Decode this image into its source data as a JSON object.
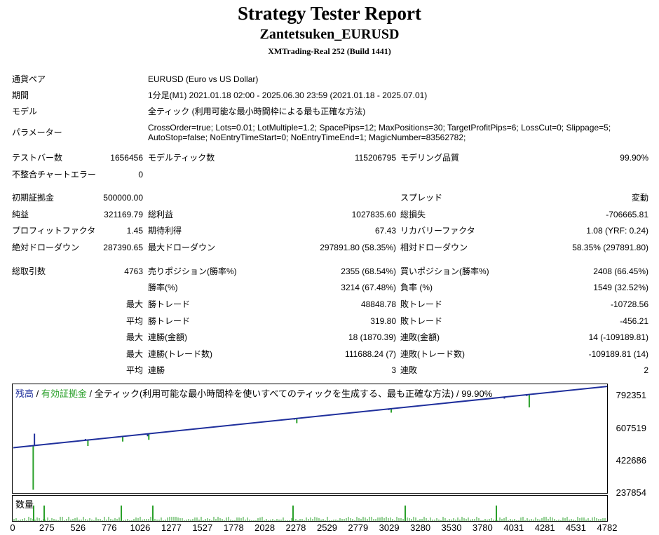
{
  "report": {
    "title": "Strategy Tester Report",
    "expert": "Zantetsuken_EURUSD",
    "server": "XMTrading-Real 252 (Build 1441)"
  },
  "info": {
    "pair_label": "通貨ペア",
    "pair_value": "EURUSD (Euro vs US Dollar)",
    "period_label": "期間",
    "period_value": "1分足(M1) 2021.01.18 02:00 - 2025.06.30 23:59 (2021.01.18 - 2025.07.01)",
    "model_label": "モデル",
    "model_value": "全ティック (利用可能な最小時間枠による最も正確な方法)",
    "params_label": "パラメーター",
    "params_line1": "CrossOrder=true; Lots=0.01; LotMultiple=1.2; SpacePips=12; MaxPositions=30; TargetProfitPips=6; LossCut=0; Slippage=5;",
    "params_line2": "AutoStop=false; NoEntryTimeStart=0; NoEntryTimeEnd=1; MagicNumber=83562782;"
  },
  "stats": {
    "bars_label": "テストバー数",
    "bars_value": "1656456",
    "ticks_label": "モデルティック数",
    "ticks_value": "115206795",
    "quality_label": "モデリング品質",
    "quality_value": "99.90%",
    "mismatch_label": "不整合チャートエラー",
    "mismatch_value": "0",
    "deposit_label": "初期証拠金",
    "deposit_value": "500000.00",
    "spread_label": "スプレッド",
    "spread_value": "変動",
    "net_label": "純益",
    "net_value": "321169.79",
    "gross_profit_label": "総利益",
    "gross_profit_value": "1027835.60",
    "gross_loss_label": "総損失",
    "gross_loss_value": "-706665.81",
    "pf_label": "プロフィットファクタ",
    "pf_value": "1.45",
    "expected_label": "期待利得",
    "expected_value": "67.43",
    "recovery_label": "リカバリーファクタ",
    "recovery_value": "1.08 (YRF: 0.24)",
    "abs_dd_label": "絶対ドローダウン",
    "abs_dd_value": "287390.65",
    "max_dd_label": "最大ドローダウン",
    "max_dd_value": "297891.80 (58.35%)",
    "rel_dd_label": "相対ドローダウン",
    "rel_dd_value": "58.35% (297891.80)",
    "trades_label": "総取引数",
    "trades_value": "4763",
    "short_label": "売りポジション(勝率%)",
    "short_value": "2355 (68.54%)",
    "long_label": "買いポジション(勝率%)",
    "long_value": "2408 (66.45%)",
    "winrate_label": "勝率(%)",
    "winrate_value": "3214 (67.48%)",
    "lossrate_label": "負率 (%)",
    "lossrate_value": "1549 (32.52%)",
    "max1": "最大",
    "largest_win_label": "勝トレード",
    "largest_win_value": "48848.78",
    "largest_loss_label": "敗トレード",
    "largest_loss_value": "-10728.56",
    "avg1": "平均",
    "avg_win_label": "勝トレード",
    "avg_win_value": "319.80",
    "avg_loss_label": "敗トレード",
    "avg_loss_value": "-456.21",
    "max2": "最大",
    "cons_win_label": "連勝(金額)",
    "cons_win_value": "18 (1870.39)",
    "cons_loss_label": "連敗(金額)",
    "cons_loss_value": "14 (-109189.81)",
    "max3": "最大",
    "cons_profit_label": "連勝(トレード数)",
    "cons_profit_value": "111688.24 (7)",
    "cons_lossamt_label": "連敗(トレード数)",
    "cons_lossamt_value": "-109189.81 (14)",
    "avg2": "平均",
    "avg_cons_win_label": "連勝",
    "avg_cons_win_value": "3",
    "avg_cons_loss_label": "連敗",
    "avg_cons_loss_value": "2"
  },
  "chart": {
    "legend_balance": "残高",
    "legend_sep1": " / ",
    "legend_equity": "有効証拠金",
    "legend_sep2": " / ",
    "legend_model": "全ティック(利用可能な最小時間枠を使いすべてのティックを生成する、最も正確な方法) / 99.90%",
    "volume_label": "数量",
    "colors": {
      "balance": "#1f2f9c",
      "equity": "#2aa02a",
      "volume": "#2aa02a"
    }
  },
  "chart_data": {
    "type": "line",
    "ylim": [
      237854,
      850000
    ],
    "y_ticks": [
      "792351",
      "607519",
      "422686",
      "237854"
    ],
    "x_ticks": [
      "0",
      "275",
      "526",
      "776",
      "1026",
      "1277",
      "1527",
      "1778",
      "2028",
      "2278",
      "2529",
      "2779",
      "3029",
      "3280",
      "3530",
      "3780",
      "4031",
      "4281",
      "4531",
      "4782"
    ],
    "xlim": [
      0,
      4782
    ],
    "series": [
      {
        "name": "残高",
        "x": [
          0,
          4782
        ],
        "y": [
          500000,
          850000
        ]
      }
    ],
    "balance_spikes": [
      {
        "x": 170,
        "y": 580000
      },
      {
        "x": 580,
        "y": 550000
      },
      {
        "x": 870,
        "y": 560000
      },
      {
        "x": 1080,
        "y": 565000
      },
      {
        "x": 2260,
        "y": 660000
      },
      {
        "x": 3020,
        "y": 715000
      },
      {
        "x": 3950,
        "y": 780000
      },
      {
        "x": 4130,
        "y": 795000
      }
    ],
    "equity_dips": [
      {
        "x": 160,
        "y": 260000
      },
      {
        "x": 600,
        "y": 510000
      },
      {
        "x": 880,
        "y": 535000
      },
      {
        "x": 1090,
        "y": 545000
      },
      {
        "x": 2280,
        "y": 640000
      },
      {
        "x": 3040,
        "y": 700000
      },
      {
        "x": 4150,
        "y": 730000
      }
    ]
  }
}
